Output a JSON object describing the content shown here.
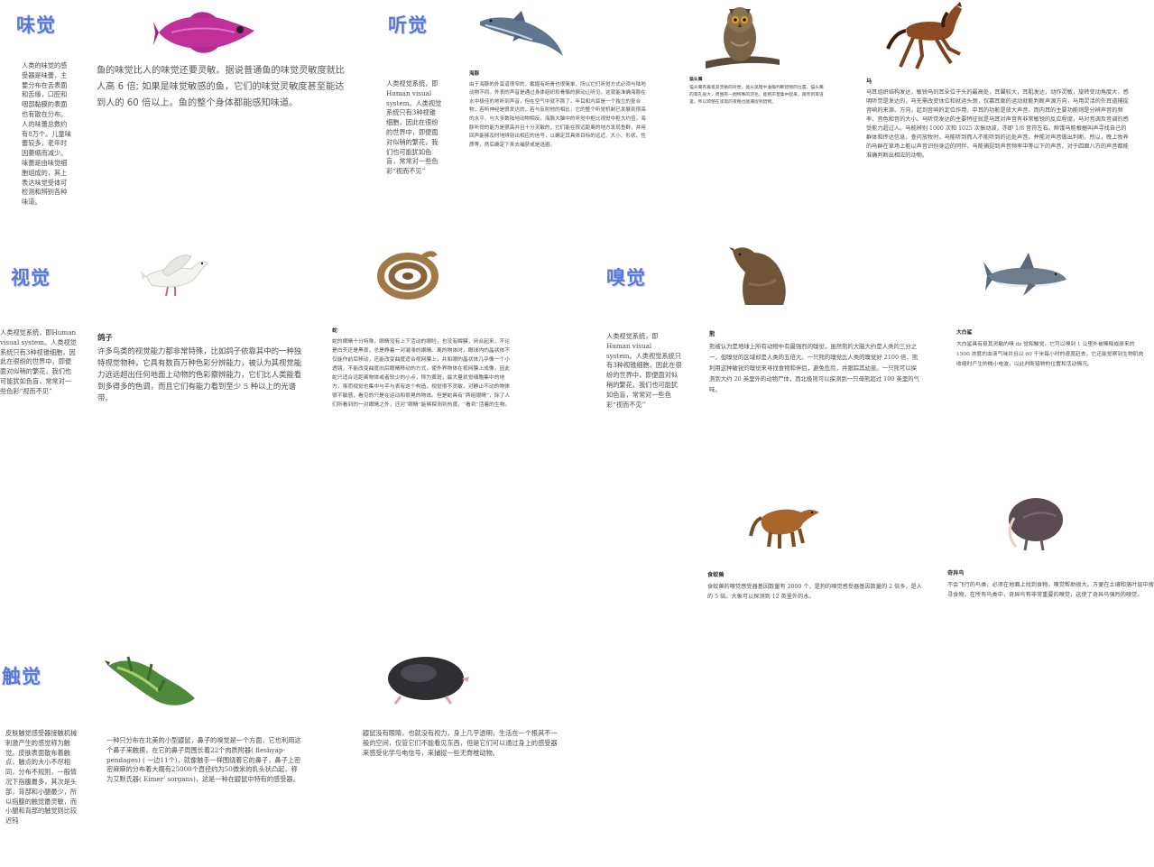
{
  "sections": {
    "taste": "味觉",
    "hearing": "听觉",
    "vision": "视觉",
    "smell": "嗅觉",
    "touch": "触觉"
  },
  "taste": {
    "human": "人类的味觉的感受器是味蕾，主要分布在舌表面和舌缘，口腔和咽部黏膜的表面也有散在分布。人的味蕾总数约有8万个。儿童味蕾较多，老年时因萎缩而减少。味蕾是由味觉细胞组成的，其上表达味觉受体可检测和辨别各种味道。",
    "fish": "鱼的味觉比人的味觉还要灵敏。据说普通鱼的味觉灵敏度就比人高 6 倍; 如果是味觉敏感的鱼，它们的味觉灵敏度甚至能达到人的 60 倍以上。鱼的整个身体都能感知味道。"
  },
  "hearing": {
    "human": "人类视觉系统，即Human visual system。人类视觉系统只有3种视锥细胞，因此在很纷的世界中，即便面对似稍的繁花，我们也可能犹如色盲，常常对一些色彩“视而不见”",
    "dolphin_title": "海豚",
    "dolphin": "由于海豚的外耳道很窄的，截掘有听骨也很简单，所以它们听觉方式必须与陆地动物不同。外表的声音是通过身体组织和骨骼的振动让听见。这就能准确海豚在水中极佳的地听到声音，但在空气中就不那了。年耳和内耳是一个独立的复合物，若听神经是很发达的，若与反射他的相比，它的整个听觉机制已发展到很高的水平，与大多数陆地动物相反。海豚大脑中的听觉中枢比视觉中枢大约倍，海豚听觉的能力是很高并且十分灵敏的，它们能在很远距离的地方发现鱼群，并用回声能够及时地辨别出相应的信号，以确定其具体目标的远近、大小、形状、性质等，然后确定下来去捕获或是逃避。",
    "owl_title": "猫头鹰",
    "owl": "猫头鹰有着极其灵敏的听觉，能从黑暗中准确判断猎物的位置。猫头鹰的耳孔很大，周围有一圈特殊的羽毛，能把声音集中起来，再传到耳道里，所以即使在漆黑的夜晚也能捕捉到猎物。",
    "horse_title": "马",
    "horse": "马耳组织结构发达，敏锐马的耳朵位于头的最高处，耳翼较大，耳肌发达，动作灵敏，旋转变动角度大，感明听觉是发达的，马无需改变体位和就运头颈，仅靠耳廓的运动就能判断声源方向，马用灵活的外耳道捕捉音响的来源、方向，起到音响的定位作用，中耳的功能是放大声音，而内耳的主要功能则是分辨声音的频率、音色和音的大小。马听觉发达的主要特征就是马耳对声音有非常敏锐的反应程度，马对音调及音调的感受能力超过人。马能辨别 1000 次和 1025 次振动波，亦即 1/8 音符左右。醉饿马能根据叫声寻找自己的群体和传达信息，查问放牧时，马能听到而人不能听到的远处声音，并能对声音做出判断，所以，晚上牧养的马群在草场上能以声音识别身边的同伴，马能捕捉到声音频率中等以下的声音，对于四面八方的声音都能准确判断出相应的动物。"
  },
  "vision": {
    "human": "人类视觉系统，即Human visual system。人类视觉系统只有3种视锥细胞，因此在很纷的世界中，即便面对似稍的繁花，我们也可能犹如色盲，常常对一些色彩“视而不见”",
    "dove_title": "鸽子",
    "dove": "许多鸟类的视觉能力都非常特殊，比如鸽子依靠其中的一种独特视觉物种，它具有数百万种色彩分辨能力，被认为其视觉能力远远超出任何地面上动物的色彩察辨能力，它们比人类能看到多得多的色调，而且它们有能力看到至少 5 种以上的光谱带。",
    "snake_title": "蛇",
    "snake": "蛇的眼睛十分特殊，眼睛没有上下活动的眼睑，也没有瞬膜，闭合起来，不论是白天还是黑夜，总是睁着一对凝滞的眼睛。离的物体时，眼球内的晶状体不仅能作前后移动，还能改变曲度适合视网膜上，并和眼的晶状体几乎像一个小透镜，不能改变曲度向后眼睛移动的方式，使外界物体在视网膜上成像，因此蛇只适合远距离物体或者较少的小点，称为黄斑，最大量状觉细胞集中的地方，虽而视觉也集中与平与表有这个构造，视觉很不灵敏，对静止不动的物体很不敏感，看见的只是在运动和很晃的物体。但是蛇具有“两组眼睛”，除了人们所看到的一对眼睛之外，还对“眼睛”能够探测到热度，“看到”活着的生物。"
  },
  "smell": {
    "human": "人类视觉系统，即Human visual system。人类视觉系统只有3种视锥细胞，因此在很纷的世界中，即便面对似稍的繁花，我们也可能犹如色盲，常常对一些色彩“视而不见”",
    "bear_title": "熊",
    "bear": "熊被认为是地球上所有动物中有最强烈的嗅觉，虽然熊的大脑大约是人类的三分之一，但嗅觉的区域却是人类的五倍大。一只熊的嗅觉比人类的嗅觉好 2100 倍，熊利用这种敏锐的嗅觉来寻找食物和伴侣，避免危险，并跟踪其幼崽。一只熊可以探测到大约 20 英里外的动物尸体，而北极熊可以探测到一只母熊超过 100 英里的气味。",
    "shark_title": "大白鲨",
    "shark": "大白鲨具有极其灵敏的嗅 dz 觉和触觉，它可以嗅到 1 公里外被稀释成原来的 1500 浓度的血液气味并且以 60 千米每小时的速度赶去，它还能觉察到生物肌肉收缩时产生的微小电波，以此判断猎物的位置和活动情况。",
    "anteater_title": "食蚁兽",
    "anteater": "食蚁兽的嗅觉感受器基因数量有 2000 个，是狗的嗅觉感受器基因数量的 2 倍多，是人的 5 倍。大象可以探测到 12 英里外的水。",
    "kiwi_title": "奇异鸟",
    "kiwi": "不会飞行的鸟类，必须在地面上找到食物，嗅觉帮助很大。方便在土壤和落叶层中搜寻食物，在所有鸟类中，奇异鸟有非常重要的嗅觉，这使了奇异鸟强烈的嗅觉。"
  },
  "touch": {
    "human": "皮肤触觉感受器接触机械刺激产生的感觉称为触觉。皮肤表面散布着触点，触点的大小不尽相同，分布不规则，一般情况下指腹最多，其次是头部，背部和小腿最少，所以指腹的触觉最灵敏，而小腿和背部的触觉则比较迟钝",
    "starmole": "一种只分布在北美的小型鼹鼠，鼻子的嗅觉是一个方面，它也利用这个鼻子来触摸，在它的鼻子周围长着22个肉质附器( fleshyap-pendages) ( 一边11个)，就像触手一样围绕着它的鼻子，鼻子上密密麻麻的分布着大概有25000个直径约为50微米的乳头状凸起，称为艾默氏器( Eimer' sorgans)，这是一种在鼹鼠中特有的感受器。",
    "mole": "鼹鼠没有眼睛，也就没有视力，身上几乎透明，生活在一个根其不一般的空间，仅管它们不能看见东西，但是它们可以通过身上的感受器来感受化学与电信号，来捕捉一些无脊椎动物。"
  },
  "icons": [
    "fish-image",
    "dolphin-image",
    "owl-image",
    "horse-image",
    "dove-image",
    "snake-image",
    "bear-image",
    "shark-image",
    "anteater-image",
    "kiwi-image",
    "lizard-image",
    "mole-image"
  ]
}
